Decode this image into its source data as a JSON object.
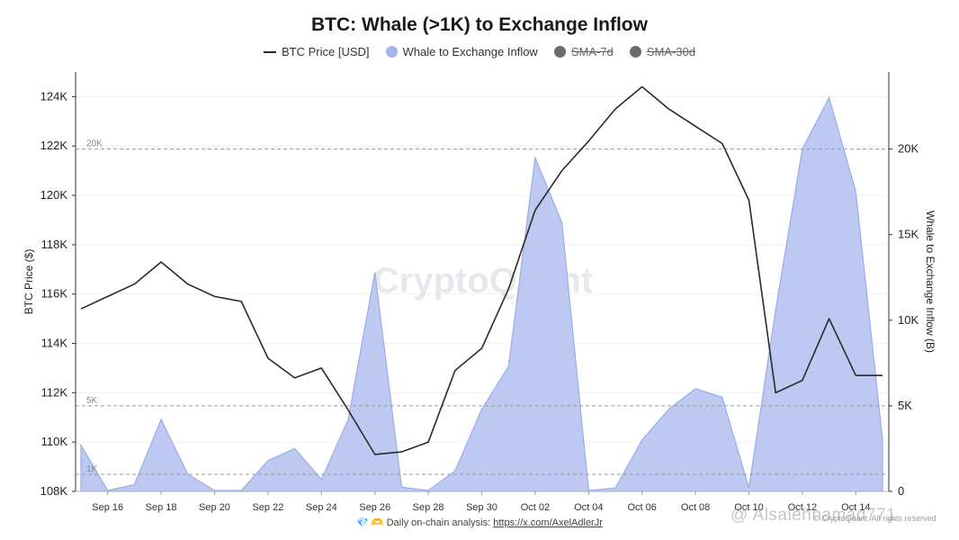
{
  "title": "BTC: Whale (>1K) to Exchange Inflow",
  "legend": [
    {
      "label": "BTC Price [USD]",
      "kind": "line",
      "color": "#2b2b2b",
      "struck": false
    },
    {
      "label": "Whale to Exchange Inflow",
      "kind": "dot",
      "color": "#a3b4ea",
      "struck": false
    },
    {
      "label": "SMA-7d",
      "kind": "dot",
      "color": "#6b6b6b",
      "struck": true
    },
    {
      "label": "SMA-30d",
      "kind": "dot",
      "color": "#6b6b6b",
      "struck": true
    }
  ],
  "watermark": "CryptoQuant",
  "footer": {
    "prefix": "💎 🫶 Daily on-chain analysis: ",
    "link": "https://x.com/AxelAdlerJr"
  },
  "overlay_handle": "@ Alsalehhamad771",
  "copyright": "© CryptoQuant. All rights reserved",
  "colors": {
    "price_line": "#2b2b2b",
    "inflow_fill": "#b9c6f0",
    "inflow_stroke": "#9aadea",
    "ref_line": "#9a9a9a",
    "grid": "#f0f0f0"
  },
  "chart_data": {
    "type": "area",
    "x": [
      "Sep 15",
      "Sep 16",
      "Sep 17",
      "Sep 18",
      "Sep 19",
      "Sep 20",
      "Sep 21",
      "Sep 22",
      "Sep 23",
      "Sep 24",
      "Sep 25",
      "Sep 26",
      "Sep 27",
      "Sep 28",
      "Sep 29",
      "Sep 30",
      "Oct 01",
      "Oct 02",
      "Oct 03",
      "Oct 04",
      "Oct 05",
      "Oct 06",
      "Oct 07",
      "Oct 08",
      "Oct 09",
      "Oct 10",
      "Oct 11",
      "Oct 12",
      "Oct 13",
      "Oct 14",
      "Oct 15"
    ],
    "x_tick_labels": [
      "Sep 16",
      "Sep 18",
      "Sep 20",
      "Sep 22",
      "Sep 24",
      "Sep 26",
      "Sep 28",
      "Sep 30",
      "Oct 02",
      "Oct 04",
      "Oct 06",
      "Oct 08",
      "Oct 10",
      "Oct 12",
      "Oct 14"
    ],
    "series": [
      {
        "name": "BTC Price [USD]",
        "axis": "left",
        "style": "line",
        "values": [
          115400,
          115900,
          116400,
          117300,
          116400,
          115900,
          115700,
          113400,
          112600,
          113000,
          111300,
          109500,
          109600,
          110000,
          112900,
          113800,
          116200,
          119400,
          121000,
          122200,
          123500,
          124400,
          123500,
          122800,
          122100,
          119800,
          112000,
          112500,
          115000,
          112700,
          112700
        ]
      },
      {
        "name": "Whale to Exchange Inflow",
        "axis": "right",
        "style": "area",
        "values": [
          2700,
          50,
          400,
          4200,
          1000,
          50,
          50,
          1800,
          2500,
          700,
          4200,
          12800,
          250,
          50,
          1200,
          4800,
          7300,
          19500,
          15700,
          50,
          200,
          3000,
          4800,
          6000,
          5500,
          200,
          10600,
          20000,
          23000,
          17500,
          3000
        ]
      }
    ],
    "y_left": {
      "label": "BTC Price ($)",
      "min": 108000,
      "max": 125000,
      "ticks": [
        108000,
        110000,
        112000,
        114000,
        116000,
        118000,
        120000,
        122000,
        124000
      ],
      "tick_labels": [
        "108K",
        "110K",
        "112K",
        "114K",
        "116K",
        "118K",
        "120K",
        "122K",
        "124K"
      ]
    },
    "y_right": {
      "label": "Whale to Exchange Inflow (B)",
      "min": 0,
      "max": 24500,
      "ticks": [
        0,
        5000,
        10000,
        15000,
        20000
      ],
      "tick_labels": [
        "0",
        "5K",
        "10K",
        "15K",
        "20K"
      ]
    },
    "reference_lines": [
      {
        "value": 20000,
        "label": "20K"
      },
      {
        "value": 5000,
        "label": "5K"
      },
      {
        "value": 1000,
        "label": "1K"
      }
    ],
    "grid": true,
    "legend_position": "top-center"
  }
}
